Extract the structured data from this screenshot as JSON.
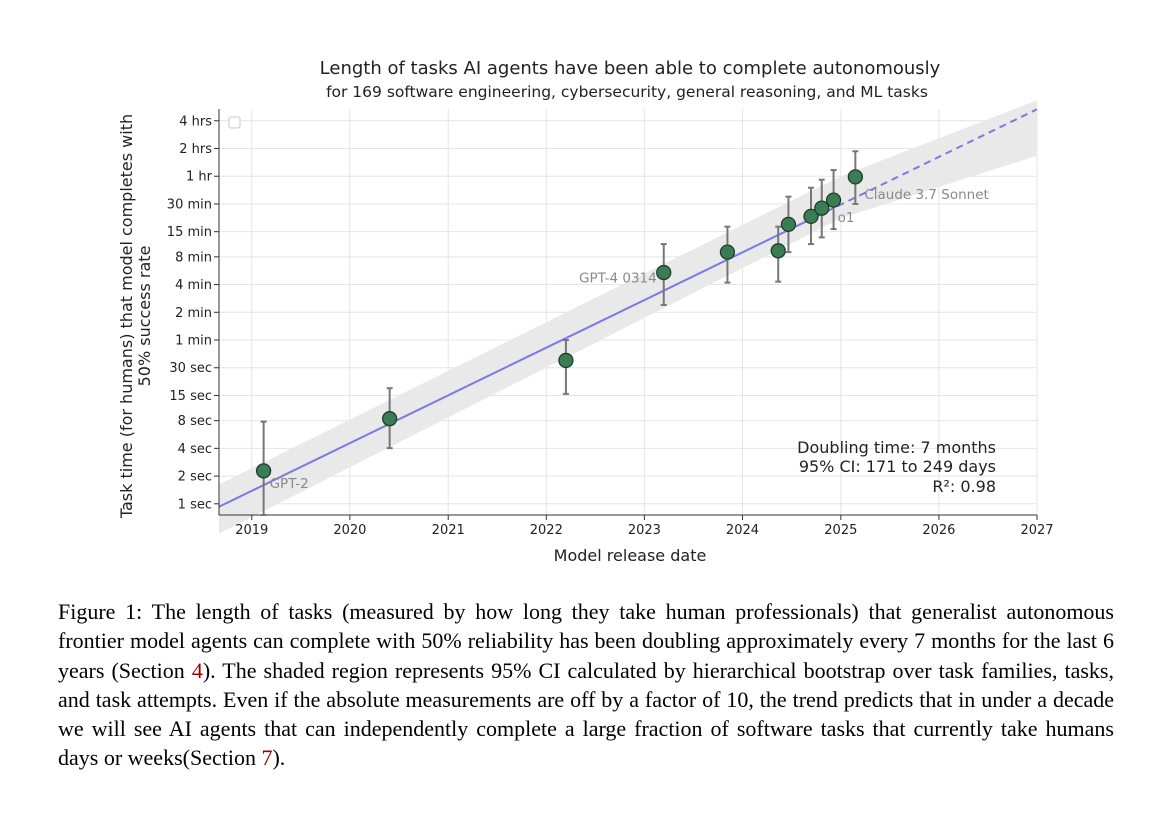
{
  "chart_data": {
    "type": "scatter",
    "title": "Length of tasks AI agents have been able to complete autonomously",
    "subtitle": "for 169 software engineering, cybersecurity, general reasoning, and ML tasks",
    "xlabel": "Model release date",
    "ylabel_line1": "Task time (for humans) that model completes with",
    "ylabel_line2": "50% success rate",
    "y_scale": "log",
    "y_unit": "minutes",
    "xlim": [
      "2018-09-01",
      "2027-01-01"
    ],
    "ylim": [
      0.0126,
      322
    ],
    "x_ticks": [
      {
        "label": "2019",
        "date": "2019-01-01"
      },
      {
        "label": "2020",
        "date": "2020-01-01"
      },
      {
        "label": "2021",
        "date": "2021-01-01"
      },
      {
        "label": "2022",
        "date": "2022-01-01"
      },
      {
        "label": "2023",
        "date": "2023-01-01"
      },
      {
        "label": "2024",
        "date": "2024-01-01"
      },
      {
        "label": "2025",
        "date": "2025-01-01"
      },
      {
        "label": "2026",
        "date": "2026-01-01"
      },
      {
        "label": "2027",
        "date": "2027-01-01"
      }
    ],
    "y_ticks": [
      {
        "label": "1 sec",
        "minutes": 0.01667
      },
      {
        "label": "2 sec",
        "minutes": 0.03333
      },
      {
        "label": "4 sec",
        "minutes": 0.06667
      },
      {
        "label": "8 sec",
        "minutes": 0.1333
      },
      {
        "label": "15 sec",
        "minutes": 0.25
      },
      {
        "label": "30 sec",
        "minutes": 0.5
      },
      {
        "label": "1 min",
        "minutes": 1
      },
      {
        "label": "2 min",
        "minutes": 2
      },
      {
        "label": "4 min",
        "minutes": 4
      },
      {
        "label": "8 min",
        "minutes": 8
      },
      {
        "label": "15 min",
        "minutes": 15
      },
      {
        "label": "30 min",
        "minutes": 30
      },
      {
        "label": "1 hr",
        "minutes": 60
      },
      {
        "label": "2 hrs",
        "minutes": 120
      },
      {
        "label": "4 hrs",
        "minutes": 240
      }
    ],
    "grid": true,
    "points": [
      {
        "date": "2019-02-14",
        "minutes": 0.038,
        "err_low": 0.0126,
        "err_high": 0.13,
        "label": "GPT-2"
      },
      {
        "date": "2020-05-28",
        "minutes": 0.14,
        "err_low": 0.067,
        "err_high": 0.3
      },
      {
        "date": "2022-03-15",
        "minutes": 0.6,
        "err_low": 0.26,
        "err_high": 1.0
      },
      {
        "date": "2023-03-14",
        "minutes": 5.4,
        "err_low": 2.4,
        "err_high": 11.0,
        "label": "GPT-4 0314"
      },
      {
        "date": "2023-11-06",
        "minutes": 9.0,
        "err_low": 4.2,
        "err_high": 17.0
      },
      {
        "date": "2024-05-13",
        "minutes": 9.3,
        "err_low": 4.3,
        "err_high": 17.0
      },
      {
        "date": "2024-06-20",
        "minutes": 18.0,
        "err_low": 9.0,
        "err_high": 36.0
      },
      {
        "date": "2024-09-12",
        "minutes": 22.0,
        "err_low": 11.0,
        "err_high": 45.0
      },
      {
        "date": "2024-10-22",
        "minutes": 27.0,
        "err_low": 13.0,
        "err_high": 55.0
      },
      {
        "date": "2024-12-05",
        "minutes": 33.0,
        "err_low": 16.0,
        "err_high": 70.0,
        "label": "o1"
      },
      {
        "date": "2025-02-24",
        "minutes": 59.0,
        "err_low": 30.0,
        "err_high": 112.0,
        "label": "Claude 3.7 Sonnet"
      }
    ],
    "trend": {
      "solid_from": "2018-09-01",
      "solid_to": "2024-10-01",
      "dashed_to": "2027-01-01",
      "minutes_at_start": 0.0155,
      "minutes_at_end": 320,
      "ci_lower_at_start": 0.0079,
      "ci_upper_at_start": 0.027,
      "ci_lower_at_2025": 21.0,
      "ci_upper_at_2025": 60.0,
      "ci_lower_at_end": 100,
      "ci_upper_at_end": 400
    },
    "annotation": {
      "line1": "Doubling time: 7 months",
      "line2": "95% CI: 171 to 249 days",
      "line3": "R²: 0.98"
    },
    "colors": {
      "point_fill": "#3a7d54",
      "point_stroke": "#1f3d2a",
      "trend": "#7a7ae6",
      "ci_band": "#e9e9e9",
      "error_bar": "#777777",
      "grid": "#e4e4e4",
      "point_label": "#8a8a8a"
    }
  },
  "caption": {
    "prefix": "Figure 1: The length of tasks (measured by how long they take human professionals) that generalist autonomous frontier model agents can complete with 50% reliability has been doubling approximately every 7 months for the last 6 years (Section ",
    "ref1": "4",
    "middle": "). The shaded region represents 95% CI calculated by hierarchical bootstrap over task families, tasks, and task attempts. Even if the absolute measurements are off by a factor of 10, the trend predicts that in under a decade we will see AI agents that can independently complete a large fraction of software tasks that currently take humans days or weeks(Section ",
    "ref2": "7",
    "suffix": ")."
  }
}
